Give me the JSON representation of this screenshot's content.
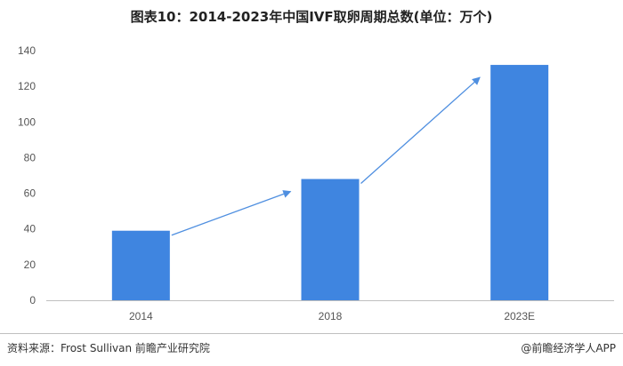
{
  "title": "图表10：2014-2023年中国IVF取卵周期总数(单位：万个)",
  "footer": {
    "source": "资料来源：Frost Sullivan 前瞻产业研究院",
    "brand": "@前瞻经济学人APP"
  },
  "colors": {
    "bar": "#3f85e0",
    "arrow": "#4f8fe0",
    "axis": "#bfbfbf"
  },
  "chart_data": {
    "type": "bar",
    "categories": [
      "2014",
      "2018",
      "2023E"
    ],
    "values": [
      39,
      68,
      132
    ],
    "ylim": [
      0,
      140
    ],
    "yticks": [
      "0",
      "20",
      "40",
      "60",
      "80",
      "100",
      "120",
      "140"
    ],
    "grid": false,
    "annotations": [
      "arrow 2014→2018",
      "arrow 2018→2023E"
    ]
  }
}
